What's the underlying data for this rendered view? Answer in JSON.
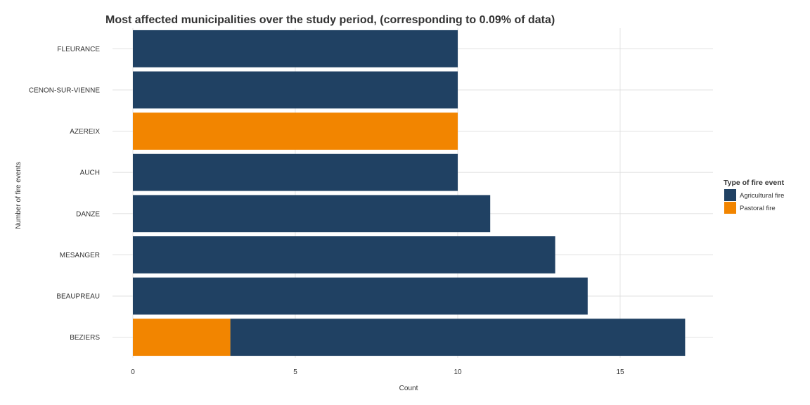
{
  "chart_data": {
    "type": "bar",
    "orientation": "horizontal",
    "stacked": true,
    "title": "Most affected municipalities over the study period, (corresponding to 0.09% of data)",
    "xlabel": "Count",
    "ylabel": "Number of fire events",
    "categories": [
      "BEZIERS",
      "BEAUPREAU",
      "MESANGER",
      "DANZE",
      "AUCH",
      "AZEREIX",
      "CENON-SUR-VIENNE",
      "FLEURANCE"
    ],
    "series": [
      {
        "name": "Pastoral fire",
        "color": "#F28500",
        "values": [
          3,
          0,
          0,
          0,
          0,
          10,
          0,
          0
        ]
      },
      {
        "name": "Agricultural fire",
        "color": "#204163",
        "values": [
          14,
          14,
          13,
          11,
          10,
          0,
          10,
          10
        ]
      }
    ],
    "xlim": [
      0,
      17.85
    ],
    "xticks": [
      0,
      5,
      10,
      15
    ],
    "grid": true,
    "legend": {
      "title": "Type of fire event",
      "placement": "right",
      "entries": [
        {
          "name": "Agricultural fire",
          "color": "#204163"
        },
        {
          "name": "Pastoral fire",
          "color": "#F28500"
        }
      ]
    }
  }
}
